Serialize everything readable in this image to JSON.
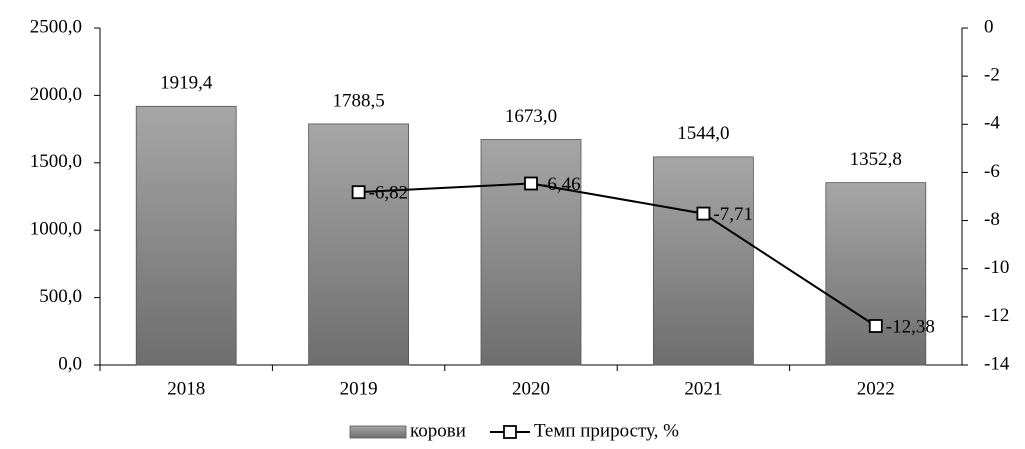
{
  "chart_data": {
    "type": "bar",
    "categories": [
      "2018",
      "2019",
      "2020",
      "2021",
      "2022"
    ],
    "series": [
      {
        "name": "корови",
        "type": "bar",
        "color": "#8c8c8c",
        "values": [
          1919.4,
          1788.5,
          1673.0,
          1544.0,
          1352.8
        ],
        "value_labels": [
          "1919,4",
          "1788,5",
          "1673,0",
          "1544,0",
          "1352,8"
        ]
      },
      {
        "name": "Темп приросту, %",
        "type": "line",
        "axis": "y2",
        "color": "#000000",
        "values": [
          null,
          -6.82,
          -6.46,
          -7.71,
          -12.38
        ],
        "value_labels": [
          null,
          "-6,82",
          "-6,46",
          "-7,71",
          "-12,38"
        ]
      }
    ],
    "ylim": [
      0,
      2500
    ],
    "yticks": [
      {
        "value": 0,
        "label": "0,0"
      },
      {
        "value": 500,
        "label": "500,0"
      },
      {
        "value": 1000,
        "label": "1000,0"
      },
      {
        "value": 1500,
        "label": "1500,0"
      },
      {
        "value": 2000,
        "label": "2000,0"
      },
      {
        "value": 2500,
        "label": "2500,0"
      }
    ],
    "y2lim": [
      -14,
      0
    ],
    "y2ticks": [
      0,
      -2,
      -4,
      -6,
      -8,
      -10,
      -12,
      -14
    ],
    "legend": "bottom"
  }
}
